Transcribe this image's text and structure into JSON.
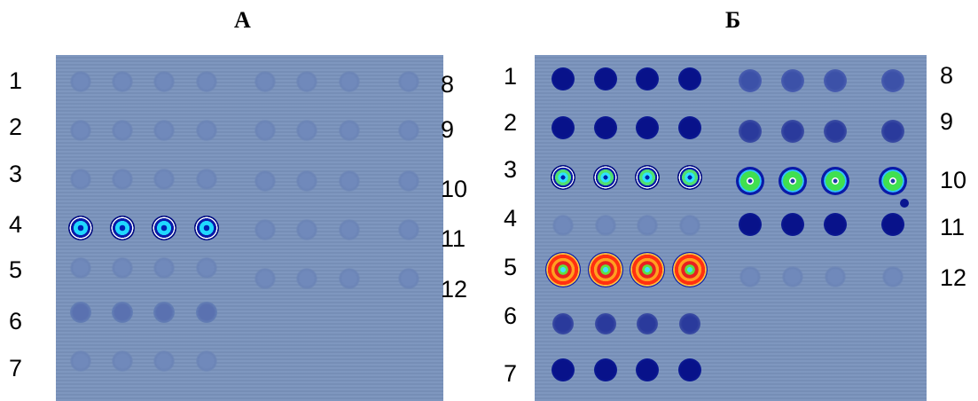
{
  "panels": [
    {
      "title": "А",
      "left_labels": [
        "1",
        "2",
        "3",
        "4",
        "5",
        "6",
        "7"
      ],
      "right_labels": [
        "8",
        "9",
        "10",
        "11",
        "12"
      ]
    },
    {
      "title": "Б",
      "left_labels": [
        "1",
        "2",
        "3",
        "4",
        "5",
        "6",
        "7"
      ],
      "right_labels": [
        "8",
        "9",
        "10",
        "11",
        "12"
      ]
    }
  ],
  "colors": {
    "background": "#7a93bd",
    "faint_spot": "#6f88b8",
    "dark_spot": "#0a1690",
    "medium_spot": "#4a5fa8",
    "spot_blue_ring": "#000a8a",
    "spot_cyan": "#1fd8ff",
    "spot_green": "#39e05a",
    "spot_red": "#e82020",
    "spot_orange": "#ff9a20"
  }
}
